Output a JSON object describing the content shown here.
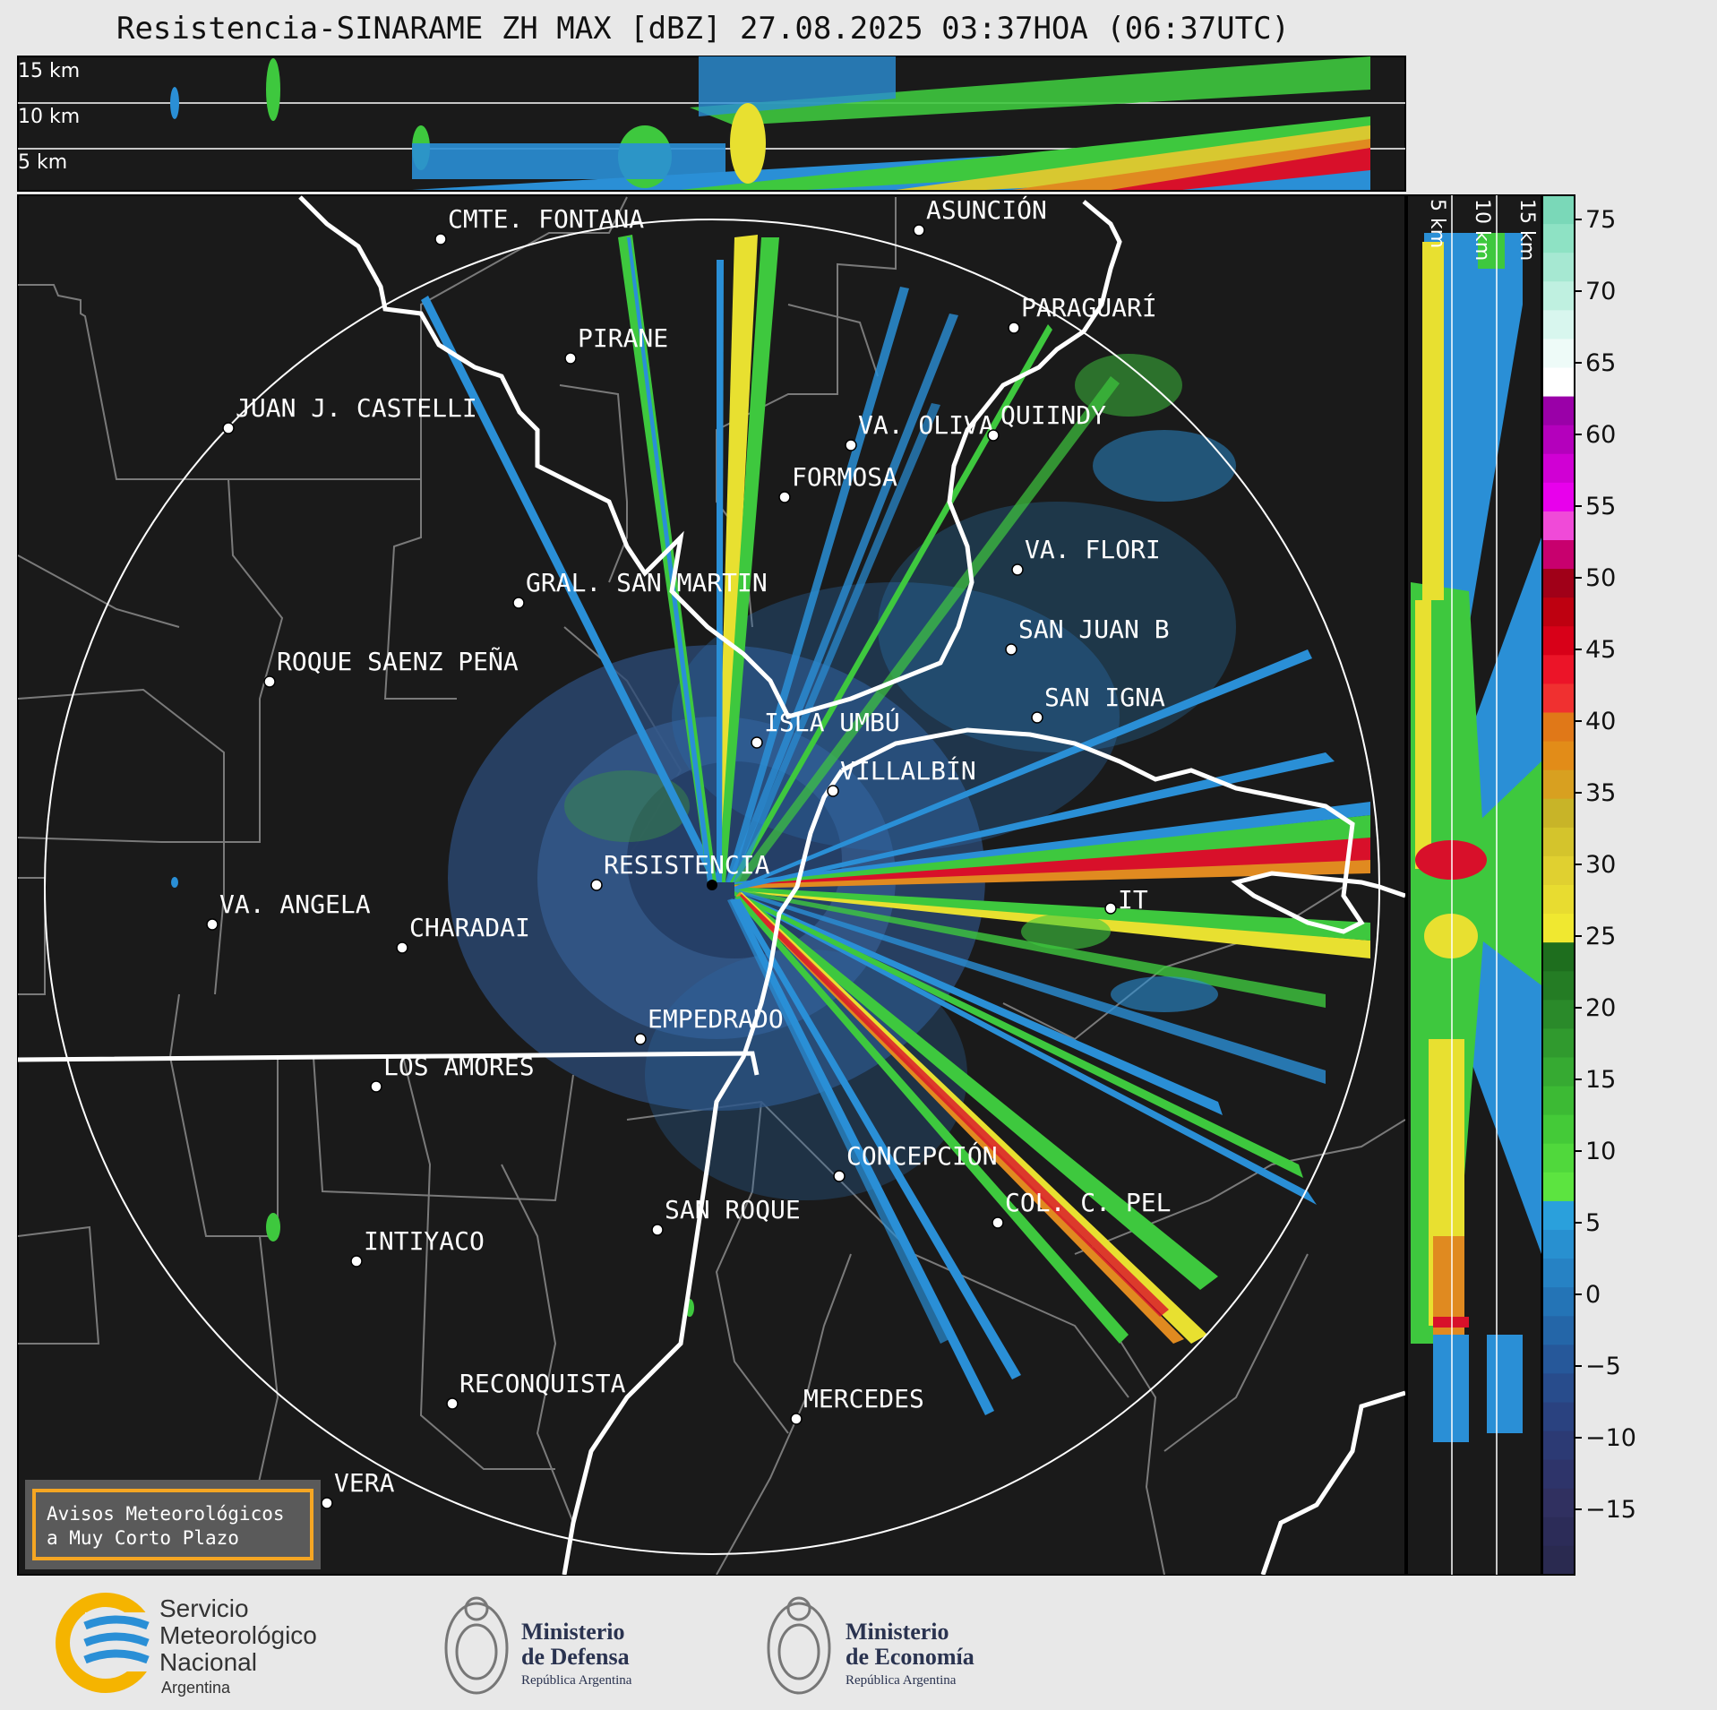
{
  "title": "Resistencia-SINARAME ZH MAX [dBZ] 27.08.2025 03:37HOA (06:37UTC)",
  "altitude_labels_top": [
    "15 km",
    "10 km",
    "5 km"
  ],
  "altitude_labels_side": [
    "5 km",
    "10 km",
    "15 km"
  ],
  "colorbar": {
    "ticks": [
      "75",
      "70",
      "65",
      "60",
      "55",
      "50",
      "45",
      "40",
      "35",
      "30",
      "25",
      "20",
      "15",
      "10",
      "5",
      "0",
      "−5",
      "−10",
      "−15"
    ]
  },
  "cities": [
    {
      "name": "CMTE. FONTANA"
    },
    {
      "name": "ASUNCIÓN"
    },
    {
      "name": "PARAGUARÍ"
    },
    {
      "name": "PIRANE"
    },
    {
      "name": "JUAN J. CASTELLI"
    },
    {
      "name": "VA. OLIVA"
    },
    {
      "name": "QUIINDY"
    },
    {
      "name": "FORMOSA"
    },
    {
      "name": "VA. FLORI"
    },
    {
      "name": "GRAL. SAN MARTIN"
    },
    {
      "name": "SAN JUAN B"
    },
    {
      "name": "ROQUE SAENZ PEÑA"
    },
    {
      "name": "SAN IGNA"
    },
    {
      "name": "ISLA UMBÚ"
    },
    {
      "name": "VILLALBÍN"
    },
    {
      "name": "RESISTENCIA"
    },
    {
      "name": "VA. ANGELA"
    },
    {
      "name": "CHARADAI"
    },
    {
      "name": "IT"
    },
    {
      "name": "EMPEDRADO"
    },
    {
      "name": "LOS AMORES"
    },
    {
      "name": "CONCEPCIÓN"
    },
    {
      "name": "SAN ROQUE"
    },
    {
      "name": "COL. C. PEL"
    },
    {
      "name": "INTIYACO"
    },
    {
      "name": "RECONQUISTA"
    },
    {
      "name": "MERCEDES"
    },
    {
      "name": "VERA"
    }
  ],
  "notice": {
    "line1": "Avisos Meteorológicos",
    "line2": "a Muy Corto Plazo"
  },
  "logos": {
    "smn": {
      "line1": "Servicio",
      "line2": "Meteorológico",
      "line3": "Nacional",
      "line4": "Argentina"
    },
    "defensa": {
      "line1": "Ministerio",
      "line2": "de Defensa",
      "line3": "República Argentina"
    },
    "economia": {
      "line1": "Ministerio",
      "line2": "de Economía",
      "line3": "República Argentina"
    }
  },
  "colors": {
    "map_bg": "#1a1a1a",
    "accent": "#f5a623",
    "smn_blue": "#2a8fd6"
  }
}
